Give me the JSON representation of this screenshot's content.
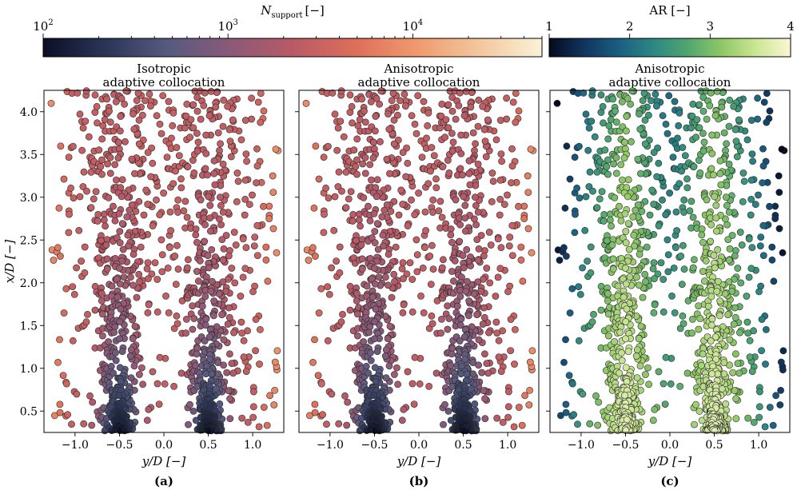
{
  "chart_data": {
    "type": "scatter",
    "panels": [
      {
        "id": "a",
        "title_line1": "Isotropic",
        "title_line2": "adaptive collocation",
        "panel_label": "(a)",
        "color_by": "N_support",
        "anisotropic": false,
        "xlabel": "y/D [−]",
        "ylabel": "x/D [−]"
      },
      {
        "id": "b",
        "title_line1": "Anisotropic",
        "title_line2": "adaptive collocation",
        "panel_label": "(b)",
        "color_by": "N_support",
        "anisotropic": true,
        "xlabel": "y/D [−]",
        "ylabel": ""
      },
      {
        "id": "c",
        "title_line1": "Anisotropic",
        "title_line2": "adaptive collocation",
        "panel_label": "(c)",
        "color_by": "AR",
        "anisotropic": true,
        "xlabel": "y/D [−]",
        "ylabel": ""
      }
    ],
    "x_range": [
      -1.35,
      1.35
    ],
    "y_range": [
      0.25,
      4.25
    ],
    "x_ticks": [
      -1.0,
      -0.5,
      0.0,
      0.5,
      1.0
    ],
    "x_tick_labels": [
      "−1.0",
      "−0.5",
      "0.0",
      "0.5",
      "1.0"
    ],
    "y_ticks": [
      0.5,
      1.0,
      1.5,
      2.0,
      2.5,
      3.0,
      3.5,
      4.0
    ],
    "y_tick_labels": [
      "0.5",
      "1.0",
      "1.5",
      "2.0",
      "2.5",
      "3.0",
      "3.5",
      "4.0"
    ],
    "jet_centers": [
      -0.5,
      0.5
    ],
    "colorbars": [
      {
        "label": "N_support [−]",
        "label_main": "N",
        "label_sub": "support",
        "label_unit": "[−]",
        "scale": "log",
        "range": [
          100,
          50000
        ],
        "ticks": [
          100,
          1000,
          10000
        ],
        "tick_bases": [
          "10",
          "10",
          "10"
        ],
        "tick_exponents": [
          "2",
          "3",
          "4"
        ],
        "colormap": "pink-navy",
        "colormap_stops": [
          "#0b0f26",
          "#2a3556",
          "#575a80",
          "#8a5a78",
          "#b85a66",
          "#dd6e5b",
          "#ef9a6e",
          "#f3c79e",
          "#faf2d8"
        ]
      },
      {
        "label": "AR [−]",
        "scale": "linear",
        "range": [
          1,
          4
        ],
        "ticks": [
          1,
          2,
          3,
          4
        ],
        "tick_labels": [
          "1",
          "2",
          "3",
          "4"
        ],
        "colormap": "navy-green-cream",
        "colormap_stops": [
          "#050a1e",
          "#11345e",
          "#1a5e82",
          "#2c8684",
          "#4fa56f",
          "#8fc766",
          "#cbe694",
          "#faf7d4"
        ]
      }
    ]
  }
}
